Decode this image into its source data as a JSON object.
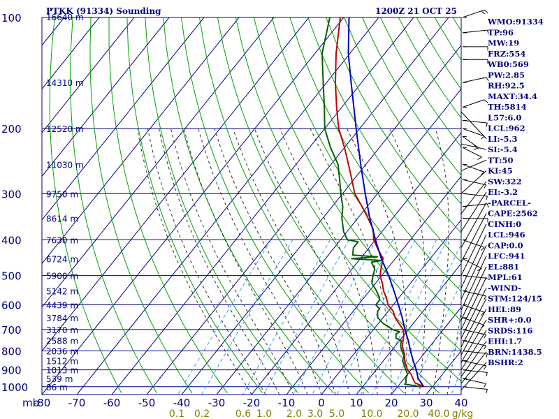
{
  "header": {
    "station": "PTKK (91334) Sounding",
    "time": "1200Z 21 OCT 25"
  },
  "chart_data": {
    "type": "line",
    "xlabel": "",
    "ylabel": "",
    "pressure_unit": "mb",
    "pressure_levels": [
      100,
      200,
      300,
      400,
      500,
      600,
      700,
      800,
      900,
      1000
    ],
    "pressure_ticks": [
      "100",
      "200",
      "300",
      "400",
      "500",
      "600",
      "700",
      "800",
      "900",
      "1000"
    ],
    "temperature_ticks": [
      -80,
      -70,
      -60,
      -50,
      -40,
      -30,
      -20,
      -10,
      0,
      10,
      20,
      30,
      40
    ],
    "temperature_tick_labels": [
      "-80",
      "-70",
      "-60",
      "-50",
      "-40",
      "-30",
      "-20",
      "-10",
      "0",
      "10",
      "20",
      "30",
      "40"
    ],
    "mixing_ratio_labels": [
      "0.1",
      "0.2",
      "0.6",
      "1.0",
      "2.0",
      "3.0",
      "5.0",
      "10.0",
      "20.0",
      "40.0",
      "g/kg"
    ],
    "height_labels": [
      {
        "p": 100,
        "label": "16640 m"
      },
      {
        "p": 150,
        "label": "14310 m"
      },
      {
        "p": 200,
        "label": "12520 m"
      },
      {
        "p": 250,
        "label": "11030 m"
      },
      {
        "p": 300,
        "label": "9750 m"
      },
      {
        "p": 350,
        "label": "8614 m"
      },
      {
        "p": 400,
        "label": "7630 m"
      },
      {
        "p": 450,
        "label": "6724 m"
      },
      {
        "p": 500,
        "label": "5900 m"
      },
      {
        "p": 550,
        "label": "5142 m"
      },
      {
        "p": 600,
        "label": "4439 m"
      },
      {
        "p": 650,
        "label": "3784 m"
      },
      {
        "p": 700,
        "label": "3170 m"
      },
      {
        "p": 750,
        "label": "2588 m"
      },
      {
        "p": 800,
        "label": "2036 m"
      },
      {
        "p": 850,
        "label": "1512 m"
      },
      {
        "p": 900,
        "label": "1013 m"
      },
      {
        "p": 950,
        "label": "539 m"
      },
      {
        "p": 1000,
        "label": "86 m"
      }
    ],
    "series": [
      {
        "type": "temperature",
        "color": "#c00000",
        "points": [
          [
            1000,
            27.5
          ],
          [
            975,
            24
          ],
          [
            950,
            22.5
          ],
          [
            925,
            21
          ],
          [
            900,
            19
          ],
          [
            875,
            17.5
          ],
          [
            850,
            16
          ],
          [
            825,
            15
          ],
          [
            800,
            13.5
          ],
          [
            775,
            12
          ],
          [
            750,
            11
          ],
          [
            725,
            10
          ],
          [
            700,
            8.5
          ],
          [
            675,
            6
          ],
          [
            650,
            3.5
          ],
          [
            625,
            1.5
          ],
          [
            600,
            -1.5
          ],
          [
            575,
            -3.5
          ],
          [
            550,
            -6
          ],
          [
            525,
            -8
          ],
          [
            500,
            -10.5
          ],
          [
            475,
            -12
          ],
          [
            450,
            -13.5
          ],
          [
            425,
            -17
          ],
          [
            400,
            -20.5
          ],
          [
            375,
            -23
          ],
          [
            350,
            -27
          ],
          [
            325,
            -31.5
          ],
          [
            300,
            -36.5
          ],
          [
            275,
            -40.5
          ],
          [
            250,
            -45
          ],
          [
            225,
            -50
          ],
          [
            200,
            -56
          ],
          [
            175,
            -61.5
          ],
          [
            150,
            -67.5
          ],
          [
            125,
            -74
          ],
          [
            100,
            -81
          ]
        ]
      },
      {
        "type": "dewpoint",
        "color": "#006000",
        "points": [
          [
            1000,
            27
          ],
          [
            985,
            21.5
          ],
          [
            975,
            21.5
          ],
          [
            950,
            20.5
          ],
          [
            925,
            20
          ],
          [
            900,
            18.5
          ],
          [
            875,
            17
          ],
          [
            850,
            15.5
          ],
          [
            825,
            14.8
          ],
          [
            800,
            13
          ],
          [
            775,
            11.5
          ],
          [
            750,
            10.5
          ],
          [
            740,
            8.5
          ],
          [
            720,
            7.5
          ],
          [
            710,
            8
          ],
          [
            700,
            5.5
          ],
          [
            690,
            4
          ],
          [
            675,
            1.5
          ],
          [
            650,
            -1.5
          ],
          [
            625,
            -3
          ],
          [
            615,
            -3
          ],
          [
            600,
            -5
          ],
          [
            585,
            -5
          ],
          [
            575,
            -5.5
          ],
          [
            550,
            -8
          ],
          [
            525,
            -11
          ],
          [
            500,
            -12.5
          ],
          [
            480,
            -13.5
          ],
          [
            460,
            -16
          ],
          [
            455,
            -13.5
          ],
          [
            450,
            -22.5
          ],
          [
            445,
            -15.5
          ],
          [
            440,
            -23
          ],
          [
            420,
            -24.5
          ],
          [
            405,
            -24.5
          ],
          [
            400,
            -28
          ],
          [
            380,
            -31
          ],
          [
            350,
            -34.5
          ],
          [
            325,
            -37
          ],
          [
            300,
            -40.5
          ],
          [
            275,
            -44
          ],
          [
            250,
            -48
          ],
          [
            225,
            -54
          ],
          [
            200,
            -60
          ],
          [
            175,
            -65
          ],
          [
            150,
            -71
          ],
          [
            125,
            -78
          ],
          [
            100,
            -84
          ]
        ]
      },
      {
        "type": "parcel",
        "color": "#0000c0",
        "points": [
          [
            1000,
            27.5
          ],
          [
            950,
            24
          ],
          [
            900,
            21.5
          ],
          [
            850,
            18.5
          ],
          [
            800,
            15.5
          ],
          [
            750,
            12.5
          ],
          [
            700,
            9
          ],
          [
            650,
            5.5
          ],
          [
            600,
            1.5
          ],
          [
            550,
            -3
          ],
          [
            500,
            -8
          ],
          [
            450,
            -14
          ],
          [
            400,
            -20
          ],
          [
            350,
            -26.5
          ],
          [
            300,
            -33.5
          ],
          [
            250,
            -41.5
          ],
          [
            200,
            -51
          ],
          [
            150,
            -63
          ],
          [
            125,
            -70.5
          ],
          [
            100,
            -78.5
          ]
        ]
      }
    ],
    "wind_barbs": [
      {
        "p": 100,
        "dir": 60,
        "spd": 20
      },
      {
        "p": 110,
        "dir": 80,
        "spd": 15
      },
      {
        "p": 120,
        "dir": 90,
        "spd": 10
      },
      {
        "p": 130,
        "dir": 90,
        "spd": 10
      },
      {
        "p": 150,
        "dir": 70,
        "spd": 15
      },
      {
        "p": 175,
        "dir": 60,
        "spd": 10
      },
      {
        "p": 190,
        "dir": 100,
        "spd": 10
      },
      {
        "p": 200,
        "dir": 120,
        "spd": 10
      },
      {
        "p": 210,
        "dir": 140,
        "spd": 15
      },
      {
        "p": 225,
        "dir": 130,
        "spd": 10
      },
      {
        "p": 250,
        "dir": 120,
        "spd": 15
      },
      {
        "p": 275,
        "dir": 110,
        "spd": 10
      },
      {
        "p": 300,
        "dir": 100,
        "spd": 10
      },
      {
        "p": 325,
        "dir": 80,
        "spd": 10
      },
      {
        "p": 350,
        "dir": 90,
        "spd": 15
      },
      {
        "p": 400,
        "dir": 120,
        "spd": 10
      },
      {
        "p": 450,
        "dir": 130,
        "spd": 10
      },
      {
        "p": 500,
        "dir": 100,
        "spd": 5
      },
      {
        "p": 550,
        "dir": 110,
        "spd": 10
      },
      {
        "p": 600,
        "dir": 120,
        "spd": 10
      },
      {
        "p": 650,
        "dir": 120,
        "spd": 10
      },
      {
        "p": 700,
        "dir": 110,
        "spd": 15
      },
      {
        "p": 750,
        "dir": 110,
        "spd": 10
      },
      {
        "p": 800,
        "dir": 100,
        "spd": 10
      },
      {
        "p": 850,
        "dir": 110,
        "spd": 10
      },
      {
        "p": 900,
        "dir": 100,
        "spd": 10
      },
      {
        "p": 950,
        "dir": 110,
        "spd": 15
      },
      {
        "p": 1000,
        "dir": 100,
        "spd": 10
      }
    ],
    "indices": [
      "WMO:91334",
      "TP:96",
      "MW:19",
      "FRZ:554",
      "WB0:569",
      "PW:2.85",
      "RH:92.5",
      "MAXT:34.4",
      "TH:5814",
      "L57:6.0",
      "LCL:962",
      "LI:-5.3",
      "SI:-5.4",
      "TT:50",
      "KI:45",
      "SW:322",
      "EI:-3.2",
      "-PARCEL-",
      "CAPE:2562",
      "CINH:0",
      "LCL:946",
      "CAP:0.0",
      "LFC:941",
      "EL:881",
      "MPL:61",
      "-WIND-",
      "STM:124/15",
      "HEL:89",
      "SHR+:0.0",
      "SRDS:116",
      "EHI:1.7",
      "BRN:1438.5",
      "BSHR:2"
    ],
    "colors": {
      "frame": "#000080",
      "isotherm": "#000080",
      "dry_adiabat": "#00a000",
      "moist_adiabat": "#303030",
      "mixing_ratio": "#3399ff",
      "temperature": "#c00000",
      "dewpoint": "#006000",
      "parcel": "#0000c0"
    },
    "grid": true
  }
}
